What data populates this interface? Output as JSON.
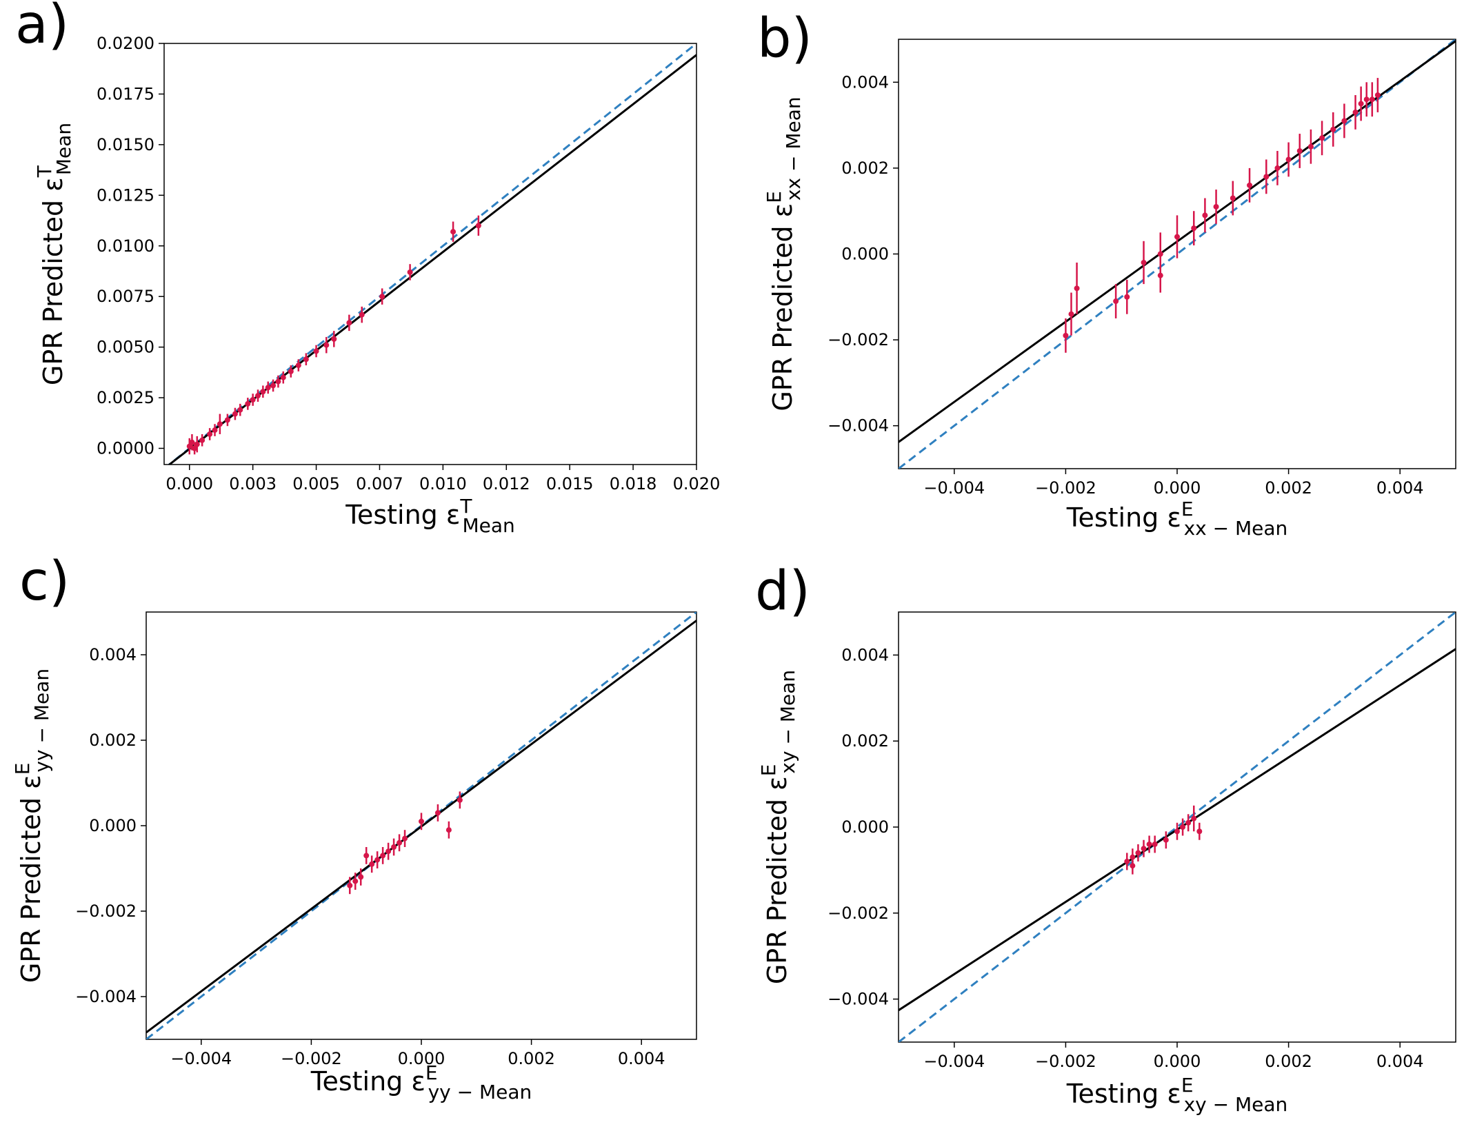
{
  "colors": {
    "parity": "#2f80c0",
    "fit": "#000000",
    "points": "#d6164a"
  },
  "chart_data": [
    {
      "type": "scatter",
      "panel_label": "a)",
      "xlabel_base": "Testing ε",
      "xlabel_sup": "T",
      "xlabel_sub": "Mean",
      "ylabel_base": "GPR Predicted ε",
      "ylabel_sup": "T",
      "ylabel_sub": "Mean",
      "xlim": [
        -0.001,
        0.02
      ],
      "ylim": [
        -0.0008,
        0.02
      ],
      "x_ticks": [
        0.0,
        0.0025,
        0.005,
        0.0075,
        0.01,
        0.0125,
        0.015,
        0.0175,
        0.02
      ],
      "x_tick_labels": [
        "0.000",
        "0.003",
        "0.005",
        "0.007",
        "0.010",
        "0.012",
        "0.015",
        "0.018",
        "0.020"
      ],
      "y_ticks": [
        0.0,
        0.0025,
        0.005,
        0.0075,
        0.01,
        0.0125,
        0.015,
        0.0175,
        0.02
      ],
      "y_tick_labels": [
        "0.0000",
        "0.0025",
        "0.0050",
        "0.0075",
        "0.0100",
        "0.0125",
        "0.0150",
        "0.0175",
        "0.0200"
      ],
      "parity_line": {
        "slope": 1,
        "intercept": 0
      },
      "fit_line": {
        "slope": 0.973,
        "intercept": -3e-05
      },
      "points": [
        {
          "x": 0.0,
          "y": 0.0001,
          "err": 0.0004
        },
        {
          "x": 0.0001,
          "y": 0.0003,
          "err": 0.0004
        },
        {
          "x": 0.0002,
          "y": 0.0,
          "err": 0.0003
        },
        {
          "x": 0.0003,
          "y": 0.0002,
          "err": 0.0004
        },
        {
          "x": 0.0005,
          "y": 0.0004,
          "err": 0.0003
        },
        {
          "x": 0.0008,
          "y": 0.0007,
          "err": 0.0003
        },
        {
          "x": 0.001,
          "y": 0.0009,
          "err": 0.0003
        },
        {
          "x": 0.0012,
          "y": 0.0012,
          "err": 0.0005
        },
        {
          "x": 0.0015,
          "y": 0.0014,
          "err": 0.0003
        },
        {
          "x": 0.0018,
          "y": 0.0017,
          "err": 0.0003
        },
        {
          "x": 0.002,
          "y": 0.0019,
          "err": 0.0003
        },
        {
          "x": 0.0023,
          "y": 0.0022,
          "err": 0.0003
        },
        {
          "x": 0.0025,
          "y": 0.0024,
          "err": 0.0003
        },
        {
          "x": 0.0027,
          "y": 0.0026,
          "err": 0.0003
        },
        {
          "x": 0.0029,
          "y": 0.0028,
          "err": 0.0003
        },
        {
          "x": 0.0031,
          "y": 0.003,
          "err": 0.0003
        },
        {
          "x": 0.0033,
          "y": 0.0031,
          "err": 0.0003
        },
        {
          "x": 0.0035,
          "y": 0.0033,
          "err": 0.0003
        },
        {
          "x": 0.0037,
          "y": 0.0035,
          "err": 0.0003
        },
        {
          "x": 0.004,
          "y": 0.0038,
          "err": 0.0003
        },
        {
          "x": 0.0043,
          "y": 0.0041,
          "err": 0.0003
        },
        {
          "x": 0.0046,
          "y": 0.0044,
          "err": 0.0003
        },
        {
          "x": 0.005,
          "y": 0.0048,
          "err": 0.0003
        },
        {
          "x": 0.0054,
          "y": 0.0051,
          "err": 0.0004
        },
        {
          "x": 0.0057,
          "y": 0.0054,
          "err": 0.0004
        },
        {
          "x": 0.0063,
          "y": 0.0062,
          "err": 0.0004
        },
        {
          "x": 0.0068,
          "y": 0.0066,
          "err": 0.0004
        },
        {
          "x": 0.0076,
          "y": 0.0075,
          "err": 0.0004
        },
        {
          "x": 0.0087,
          "y": 0.0087,
          "err": 0.0004
        },
        {
          "x": 0.0104,
          "y": 0.0107,
          "err": 0.0005
        },
        {
          "x": 0.0114,
          "y": 0.011,
          "err": 0.0005
        }
      ]
    },
    {
      "type": "scatter",
      "panel_label": "b)",
      "xlabel_base": "Testing ε",
      "xlabel_sup": "E",
      "xlabel_sub": "xx − Mean",
      "ylabel_base": "GPR Predicted ε",
      "ylabel_sup": "E",
      "ylabel_sub": "xx − Mean",
      "xlim": [
        -0.005,
        0.005
      ],
      "ylim": [
        -0.005,
        0.005
      ],
      "x_ticks": [
        -0.004,
        -0.002,
        0.0,
        0.002,
        0.004
      ],
      "x_tick_labels": [
        "−0.004",
        "−0.002",
        "0.000",
        "0.002",
        "0.004"
      ],
      "y_ticks": [
        -0.004,
        -0.002,
        0.0,
        0.002,
        0.004
      ],
      "y_tick_labels": [
        "−0.004",
        "−0.002",
        "0.000",
        "0.002",
        "0.004"
      ],
      "parity_line": {
        "slope": 1,
        "intercept": 0
      },
      "fit_line": {
        "slope": 0.934,
        "intercept": 0.00029
      },
      "points": [
        {
          "x": -0.002,
          "y": -0.0019,
          "err": 0.0004
        },
        {
          "x": -0.0019,
          "y": -0.0014,
          "err": 0.0005
        },
        {
          "x": -0.0018,
          "y": -0.0008,
          "err": 0.0006
        },
        {
          "x": -0.0011,
          "y": -0.0011,
          "err": 0.0004
        },
        {
          "x": -0.0009,
          "y": -0.001,
          "err": 0.0004
        },
        {
          "x": -0.0006,
          "y": -0.0002,
          "err": 0.0005
        },
        {
          "x": -0.0003,
          "y": 0.0,
          "err": 0.0005
        },
        {
          "x": -0.0003,
          "y": -0.0005,
          "err": 0.0004
        },
        {
          "x": 0.0,
          "y": 0.0004,
          "err": 0.0005
        },
        {
          "x": 0.0003,
          "y": 0.0006,
          "err": 0.0004
        },
        {
          "x": 0.0005,
          "y": 0.0009,
          "err": 0.0004
        },
        {
          "x": 0.0007,
          "y": 0.0011,
          "err": 0.0004
        },
        {
          "x": 0.001,
          "y": 0.0013,
          "err": 0.0004
        },
        {
          "x": 0.0013,
          "y": 0.0016,
          "err": 0.0004
        },
        {
          "x": 0.0016,
          "y": 0.0018,
          "err": 0.0004
        },
        {
          "x": 0.0018,
          "y": 0.002,
          "err": 0.0004
        },
        {
          "x": 0.002,
          "y": 0.0022,
          "err": 0.0004
        },
        {
          "x": 0.0022,
          "y": 0.0024,
          "err": 0.0004
        },
        {
          "x": 0.0024,
          "y": 0.0025,
          "err": 0.0004
        },
        {
          "x": 0.0026,
          "y": 0.0027,
          "err": 0.0004
        },
        {
          "x": 0.0028,
          "y": 0.0029,
          "err": 0.0004
        },
        {
          "x": 0.003,
          "y": 0.0031,
          "err": 0.0004
        },
        {
          "x": 0.0032,
          "y": 0.0033,
          "err": 0.0004
        },
        {
          "x": 0.0033,
          "y": 0.0035,
          "err": 0.0004
        },
        {
          "x": 0.0034,
          "y": 0.0036,
          "err": 0.0004
        },
        {
          "x": 0.0035,
          "y": 0.0036,
          "err": 0.0004
        },
        {
          "x": 0.0036,
          "y": 0.0037,
          "err": 0.0004
        }
      ]
    },
    {
      "type": "scatter",
      "panel_label": "c)",
      "xlabel_base": "Testing ε",
      "xlabel_sup": "E",
      "xlabel_sub": "yy − Mean",
      "ylabel_base": "GPR Predicted ε",
      "ylabel_sup": "E",
      "ylabel_sub": "yy − Mean",
      "xlim": [
        -0.005,
        0.005
      ],
      "ylim": [
        -0.005,
        0.005
      ],
      "x_ticks": [
        -0.004,
        -0.002,
        0.0,
        0.002,
        0.004
      ],
      "x_tick_labels": [
        "−0.004",
        "−0.002",
        "0.000",
        "0.002",
        "0.004"
      ],
      "y_ticks": [
        -0.004,
        -0.002,
        0.0,
        0.002,
        0.004
      ],
      "y_tick_labels": [
        "−0.004",
        "−0.002",
        "0.000",
        "0.002",
        "0.004"
      ],
      "parity_line": {
        "slope": 1,
        "intercept": 0
      },
      "fit_line": {
        "slope": 0.964,
        "intercept": -2e-05
      },
      "points": [
        {
          "x": -0.0013,
          "y": -0.0014,
          "err": 0.0002
        },
        {
          "x": -0.0012,
          "y": -0.0013,
          "err": 0.0002
        },
        {
          "x": -0.0011,
          "y": -0.0012,
          "err": 0.0002
        },
        {
          "x": -0.001,
          "y": -0.0007,
          "err": 0.0002
        },
        {
          "x": -0.0009,
          "y": -0.0009,
          "err": 0.0002
        },
        {
          "x": -0.0008,
          "y": -0.0008,
          "err": 0.0002
        },
        {
          "x": -0.0007,
          "y": -0.0007,
          "err": 0.0002
        },
        {
          "x": -0.0006,
          "y": -0.0006,
          "err": 0.0002
        },
        {
          "x": -0.0005,
          "y": -0.0005,
          "err": 0.0002
        },
        {
          "x": -0.0004,
          "y": -0.0004,
          "err": 0.0002
        },
        {
          "x": -0.0003,
          "y": -0.0003,
          "err": 0.0002
        },
        {
          "x": 0.0,
          "y": 0.0001,
          "err": 0.0002
        },
        {
          "x": 0.0003,
          "y": 0.0003,
          "err": 0.0002
        },
        {
          "x": 0.0005,
          "y": -0.0001,
          "err": 0.0002
        },
        {
          "x": 0.0007,
          "y": 0.0006,
          "err": 0.0002
        }
      ]
    },
    {
      "type": "scatter",
      "panel_label": "d)",
      "xlabel_base": "Testing ε",
      "xlabel_sup": "E",
      "xlabel_sub": "xy − Mean",
      "ylabel_base": "GPR Predicted ε",
      "ylabel_sup": "E",
      "ylabel_sub": "xy − Mean",
      "xlim": [
        -0.005,
        0.005
      ],
      "ylim": [
        -0.005,
        0.005
      ],
      "x_ticks": [
        -0.004,
        -0.002,
        0.0,
        0.002,
        0.004
      ],
      "x_tick_labels": [
        "−0.004",
        "−0.002",
        "0.000",
        "0.002",
        "0.004"
      ],
      "y_ticks": [
        -0.004,
        -0.002,
        0.0,
        0.002,
        0.004
      ],
      "y_tick_labels": [
        "−0.004",
        "−0.002",
        "0.000",
        "0.002",
        "0.004"
      ],
      "parity_line": {
        "slope": 1,
        "intercept": 0
      },
      "fit_line": {
        "slope": 0.84,
        "intercept": -6e-05
      },
      "points": [
        {
          "x": -0.0009,
          "y": -0.0008,
          "err": 0.0002
        },
        {
          "x": -0.0008,
          "y": -0.0007,
          "err": 0.0002
        },
        {
          "x": -0.0008,
          "y": -0.0009,
          "err": 0.0002
        },
        {
          "x": -0.0007,
          "y": -0.0006,
          "err": 0.0002
        },
        {
          "x": -0.0006,
          "y": -0.0005,
          "err": 0.0002
        },
        {
          "x": -0.0005,
          "y": -0.0004,
          "err": 0.0002
        },
        {
          "x": -0.0004,
          "y": -0.0004,
          "err": 0.0002
        },
        {
          "x": -0.0002,
          "y": -0.0003,
          "err": 0.0002
        },
        {
          "x": 0.0,
          "y": -0.0001,
          "err": 0.0002
        },
        {
          "x": 0.0001,
          "y": 0.0,
          "err": 0.0002
        },
        {
          "x": 0.0002,
          "y": 0.0001,
          "err": 0.0002
        },
        {
          "x": 0.0003,
          "y": 0.0002,
          "err": 0.0003
        },
        {
          "x": 0.0004,
          "y": -0.0001,
          "err": 0.0002
        }
      ]
    }
  ]
}
